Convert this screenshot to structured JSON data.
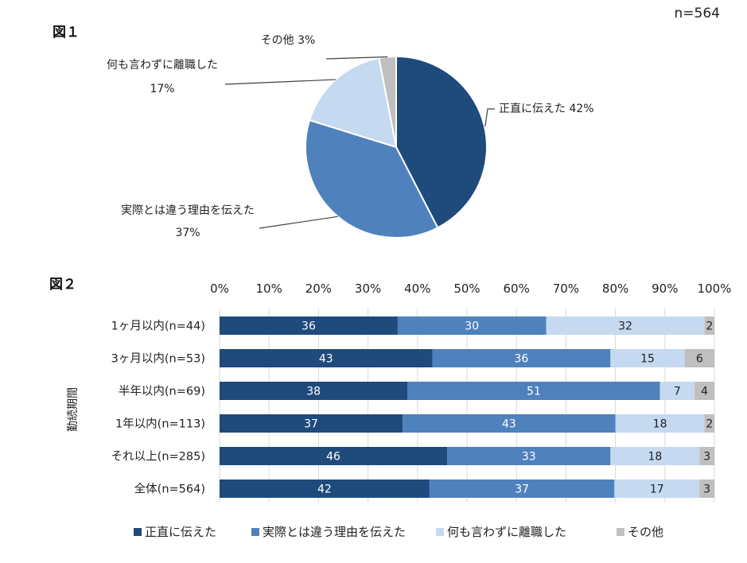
{
  "sample_note": "n=564",
  "chart_data": [
    {
      "type": "pie",
      "figure_label": "図１",
      "slices": [
        {
          "name": "正直に伝えた",
          "label": "正直に伝えた 42%",
          "value": 42,
          "color": "#1f4a7c"
        },
        {
          "name": "実際とは違う理由を伝えた",
          "label": "実際とは違う理由を伝えた",
          "pct": "37%",
          "value": 37,
          "color": "#4f81bd"
        },
        {
          "name": "何も言わずに離職した",
          "label": "何も言わずに離職した",
          "pct": "17%",
          "value": 17,
          "color": "#c5d9f1"
        },
        {
          "name": "その他",
          "label": "その他 3%",
          "value": 3,
          "color": "#bfbfbf"
        }
      ]
    },
    {
      "type": "bar",
      "orientation": "horizontal",
      "stacked": true,
      "figure_label": "図２",
      "ylabel": "勤続期間",
      "xlim": [
        0,
        100
      ],
      "x_ticks": [
        "0%",
        "10%",
        "20%",
        "30%",
        "40%",
        "50%",
        "60%",
        "70%",
        "80%",
        "90%",
        "100%"
      ],
      "categories": [
        "1ヶ月以内(n=44)",
        "3ヶ月以内(n=53)",
        "半年以内(n=69)",
        "1年以内(n=113)",
        "それ以上(n=285)",
        "全体(n=564)"
      ],
      "series": [
        {
          "name": "正直に伝えた",
          "color": "#1f4a7c",
          "values": [
            36,
            43,
            38,
            37,
            46,
            42
          ]
        },
        {
          "name": "実際とは違う理由を伝えた",
          "color": "#4f81bd",
          "values": [
            30,
            36,
            51,
            43,
            33,
            37
          ]
        },
        {
          "name": "何も言わずに離職した",
          "color": "#c5d9f1",
          "values": [
            32,
            15,
            7,
            18,
            18,
            17
          ]
        },
        {
          "name": "その他",
          "color": "#bfbfbf",
          "values": [
            2,
            6,
            4,
            2,
            3,
            3
          ]
        }
      ],
      "legend_position": "bottom"
    }
  ]
}
